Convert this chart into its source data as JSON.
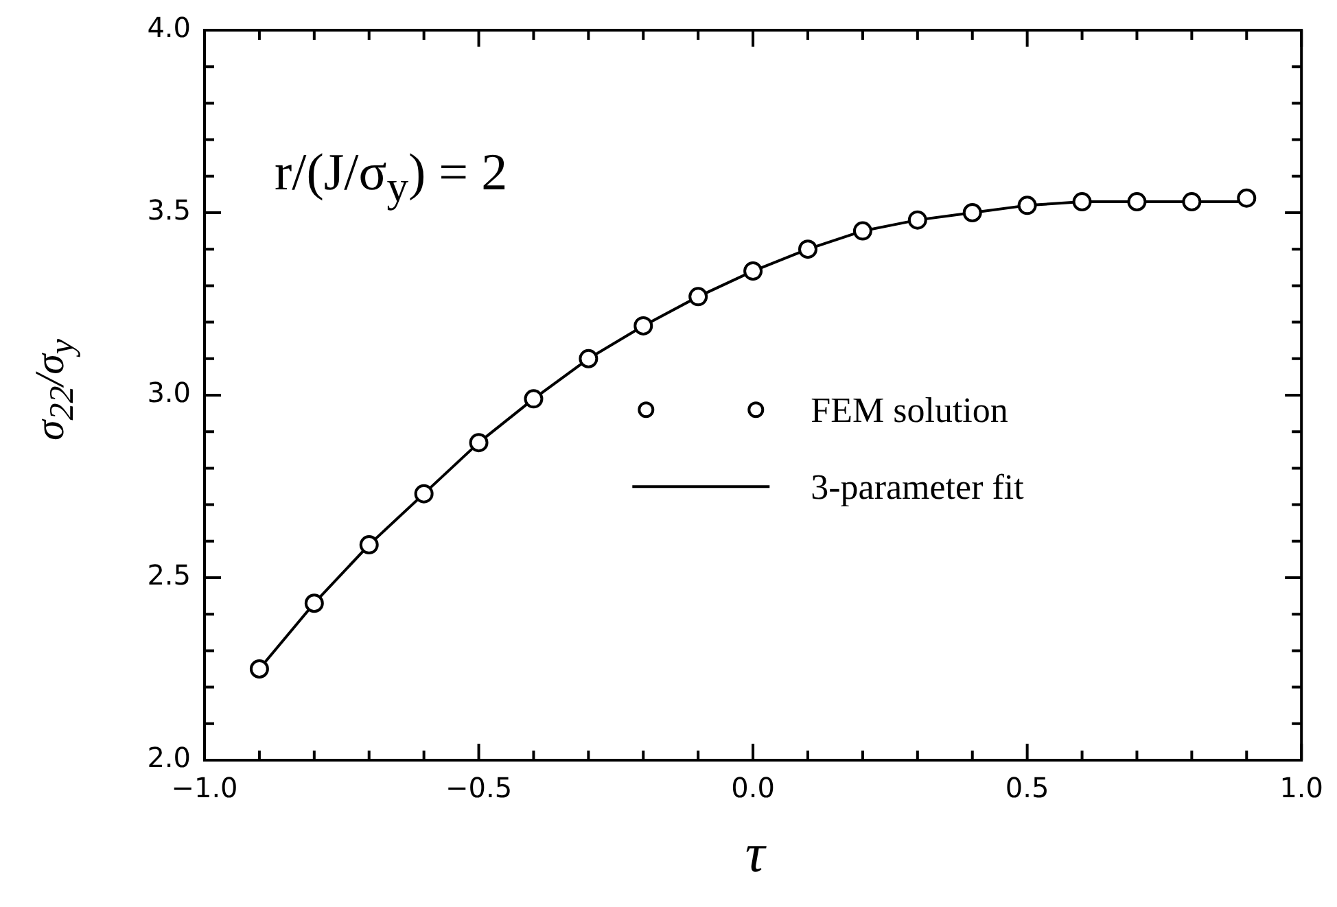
{
  "chart_data": {
    "type": "scatter",
    "xlabel": "τ",
    "ylabel": "σ$_{22}$/σ$_{y}$",
    "annotations": [
      "r/(J/σ$_{y}$) = 2"
    ],
    "xlim": [
      -1.0,
      1.0
    ],
    "ylim": [
      2.0,
      4.0
    ],
    "xticks": [
      {
        "value": -1.0,
        "label": "−1.0"
      },
      {
        "value": -0.9,
        "label": null
      },
      {
        "value": -0.8,
        "label": null
      },
      {
        "value": -0.7,
        "label": null
      },
      {
        "value": -0.6,
        "label": null
      },
      {
        "value": -0.5,
        "label": "−0.5"
      },
      {
        "value": -0.4,
        "label": null
      },
      {
        "value": -0.3,
        "label": null
      },
      {
        "value": -0.2,
        "label": null
      },
      {
        "value": -0.1,
        "label": null
      },
      {
        "value": 0.0,
        "label": "0.0"
      },
      {
        "value": 0.1,
        "label": null
      },
      {
        "value": 0.2,
        "label": null
      },
      {
        "value": 0.3,
        "label": null
      },
      {
        "value": 0.4,
        "label": null
      },
      {
        "value": 0.5,
        "label": "0.5"
      },
      {
        "value": 0.6,
        "label": null
      },
      {
        "value": 0.7,
        "label": null
      },
      {
        "value": 0.8,
        "label": null
      },
      {
        "value": 0.9,
        "label": null
      },
      {
        "value": 1.0,
        "label": "1.0"
      }
    ],
    "yticks": [
      {
        "value": 2.0,
        "label": "2.0"
      },
      {
        "value": 2.1,
        "label": null
      },
      {
        "value": 2.2,
        "label": null
      },
      {
        "value": 2.3,
        "label": null
      },
      {
        "value": 2.4,
        "label": null
      },
      {
        "value": 2.5,
        "label": "2.5"
      },
      {
        "value": 2.6,
        "label": null
      },
      {
        "value": 2.7,
        "label": null
      },
      {
        "value": 2.8,
        "label": null
      },
      {
        "value": 2.9,
        "label": null
      },
      {
        "value": 3.0,
        "label": "3.0"
      },
      {
        "value": 3.1,
        "label": null
      },
      {
        "value": 3.2,
        "label": null
      },
      {
        "value": 3.3,
        "label": null
      },
      {
        "value": 3.4,
        "label": null
      },
      {
        "value": 3.5,
        "label": "3.5"
      },
      {
        "value": 3.6,
        "label": null
      },
      {
        "value": 3.7,
        "label": null
      },
      {
        "value": 3.8,
        "label": null
      },
      {
        "value": 3.9,
        "label": null
      },
      {
        "value": 4.0,
        "label": "4.0"
      }
    ],
    "grid": false,
    "legend": "center",
    "x": [
      -0.9,
      -0.8,
      -0.7,
      -0.6,
      -0.5,
      -0.4,
      -0.3,
      -0.2,
      -0.1,
      0.0,
      0.1,
      0.2,
      0.3,
      0.4,
      0.5,
      0.6,
      0.7,
      0.8,
      0.9
    ],
    "series": [
      {
        "name": "FEM solution",
        "type": "scatter",
        "marker": "circle",
        "color": "#000000",
        "values": [
          2.25,
          2.43,
          2.59,
          2.73,
          2.87,
          2.99,
          3.1,
          3.19,
          3.27,
          3.34,
          3.4,
          3.45,
          3.48,
          3.5,
          3.52,
          3.53,
          3.53,
          3.53,
          3.54
        ]
      },
      {
        "name": "3-parameter fit",
        "type": "line",
        "marker": "none",
        "line_style": "solid",
        "color": "#000000",
        "values": [
          2.25,
          2.43,
          2.59,
          2.73,
          2.87,
          2.99,
          3.1,
          3.19,
          3.27,
          3.34,
          3.4,
          3.45,
          3.48,
          3.5,
          3.52,
          3.53,
          3.53,
          3.53,
          3.53
        ]
      }
    ]
  }
}
